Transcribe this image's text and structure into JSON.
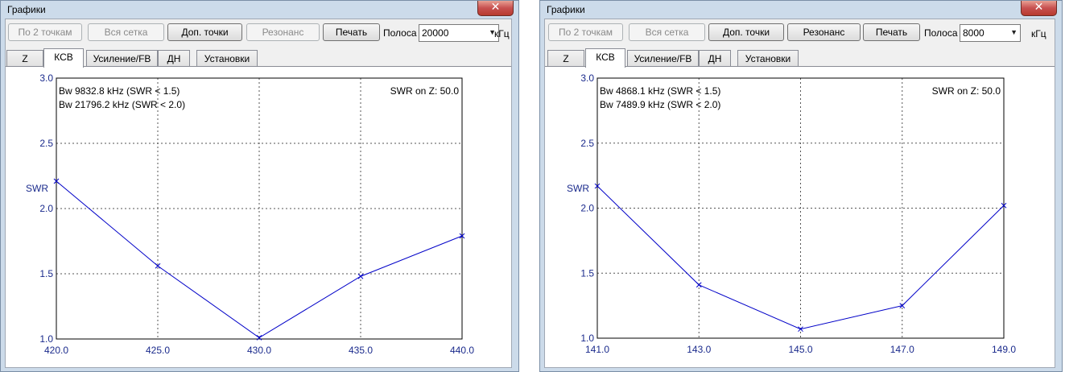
{
  "windows": [
    {
      "title": "Графики",
      "close_symbol": "✕",
      "buttons": {
        "by_2_points": "По 2 точкам",
        "full_grid": "Вся сетка",
        "extra_points": "Доп. точки",
        "resonance": "Резонанс",
        "print": "Печать"
      },
      "band_label": "Полоса",
      "band_value": "20000",
      "band_unit": "кГц",
      "tabs": [
        "Z",
        "КСВ",
        "Усиление/FB",
        "ДН",
        "Установки"
      ],
      "active_tab": "КСВ",
      "chart_data": {
        "type": "line",
        "ylabel": "SWR",
        "ylim": [
          1.0,
          3.0
        ],
        "yticks": [
          "1.0",
          "1.5",
          "2.0",
          "2.5",
          "3.0"
        ],
        "xlim": [
          420.0,
          440.0
        ],
        "xticks": [
          "420.0",
          "425.0",
          "430.0",
          "435.0",
          "440.0"
        ],
        "grid": true,
        "annotations": [
          "Bw 9832.8 kHz (SWR < 1.5)",
          "Bw 21796.2 kHz (SWR < 2.0)"
        ],
        "swr_on_z": "SWR on Z: 50.0",
        "series": [
          {
            "x": [
              420,
              425,
              430,
              435,
              440
            ],
            "y": [
              2.21,
              1.56,
              1.01,
              1.48,
              1.79
            ],
            "color": "#0000c8"
          }
        ]
      }
    },
    {
      "title": "Графики",
      "close_symbol": "✕",
      "buttons": {
        "by_2_points": "По 2 точкам",
        "full_grid": "Вся сетка",
        "extra_points": "Доп. точки",
        "resonance": "Резонанс",
        "print": "Печать"
      },
      "band_label": "Полоса",
      "band_value": "8000",
      "band_unit": "кГц",
      "tabs": [
        "Z",
        "КСВ",
        "Усиление/FB",
        "ДН",
        "Установки"
      ],
      "active_tab": "КСВ",
      "chart_data": {
        "type": "line",
        "ylabel": "SWR",
        "ylim": [
          1.0,
          3.0
        ],
        "yticks": [
          "1.0",
          "1.5",
          "2.0",
          "2.5",
          "3.0"
        ],
        "xlim": [
          141.0,
          149.0
        ],
        "xticks": [
          "141.0",
          "143.0",
          "145.0",
          "147.0",
          "149.0"
        ],
        "grid": true,
        "annotations": [
          "Bw 4868.1 kHz (SWR < 1.5)",
          "Bw 7489.9 kHz (SWR < 2.0)"
        ],
        "swr_on_z": "SWR on Z: 50.0",
        "series": [
          {
            "x": [
              141,
              143,
              145,
              147,
              149
            ],
            "y": [
              2.17,
              1.41,
              1.07,
              1.25,
              2.02
            ],
            "color": "#0000c8"
          }
        ]
      }
    }
  ]
}
